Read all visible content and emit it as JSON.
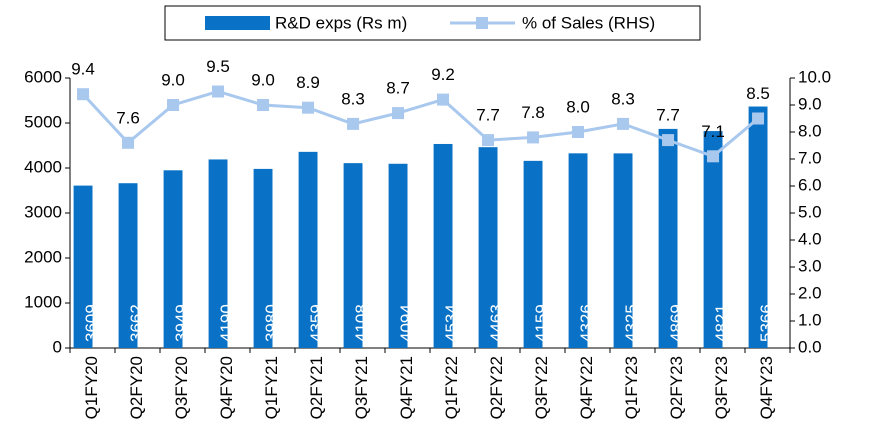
{
  "chart_data": {
    "type": "bar",
    "categories": [
      "Q1FY20",
      "Q2FY20",
      "Q3FY20",
      "Q4FY20",
      "Q1FY21",
      "Q2FY21",
      "Q3FY21",
      "Q4FY21",
      "Q1FY22",
      "Q2FY22",
      "Q3FY22",
      "Q4FY22",
      "Q1FY23",
      "Q2FY23",
      "Q3FY23",
      "Q4FY23"
    ],
    "series": [
      {
        "name": "R&D exps (Rs m)",
        "type": "bar",
        "color": "#0a72c6",
        "values": [
          3609,
          3662,
          3949,
          4190,
          3980,
          4359,
          4108,
          4094,
          4534,
          4463,
          4159,
          4326,
          4325,
          4869,
          4821,
          5366
        ]
      },
      {
        "name": "% of Sales (RHS)",
        "type": "line",
        "axis": "y2",
        "color": "#a9c8ee",
        "values": [
          9.4,
          7.6,
          9.0,
          9.5,
          9.0,
          8.9,
          8.3,
          8.7,
          9.2,
          7.7,
          7.8,
          8.0,
          8.3,
          7.7,
          7.1,
          8.5
        ],
        "value_labels": [
          "9.4",
          "7.6",
          "9.0",
          "9.5",
          "9.0",
          "8.9",
          "8.3",
          "8.7",
          "9.2",
          "7.7",
          "7.8",
          "8.0",
          "8.3",
          "7.7",
          "7.1",
          "8.5"
        ]
      }
    ],
    "ylim": [
      0,
      6000
    ],
    "yticks": [
      0,
      1000,
      2000,
      3000,
      4000,
      5000,
      6000
    ],
    "y2lim": [
      0,
      10
    ],
    "y2ticks": [
      {
        "value": 0,
        "label": "0.0"
      },
      {
        "value": 1,
        "label": "1.0"
      },
      {
        "value": 2,
        "label": "2.0"
      },
      {
        "value": 3,
        "label": "3.0"
      },
      {
        "value": 4,
        "label": "4.0"
      },
      {
        "value": 5,
        "label": "5.0"
      },
      {
        "value": 6,
        "label": "6.0"
      },
      {
        "value": 7,
        "label": "7.0"
      },
      {
        "value": 8,
        "label": "8.0"
      },
      {
        "value": 9,
        "label": "9.0"
      },
      {
        "value": 10,
        "label": "10.0"
      }
    ],
    "legend": "top",
    "grid": false
  }
}
